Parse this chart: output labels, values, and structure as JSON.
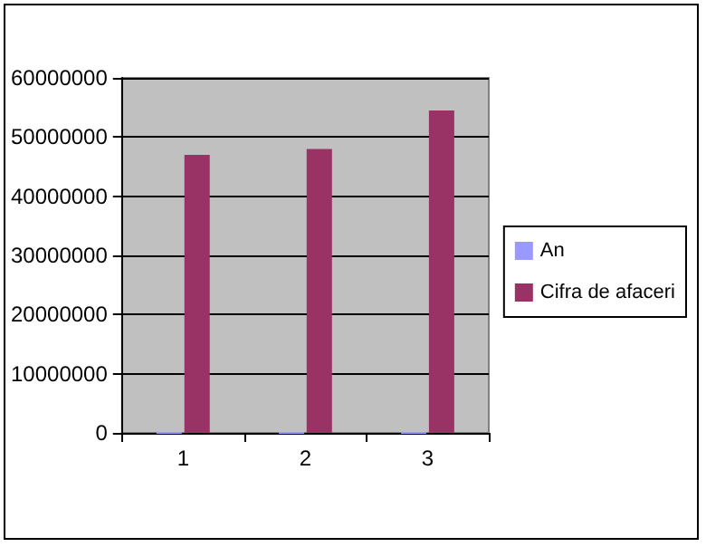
{
  "chart_data": {
    "type": "bar",
    "categories": [
      "1",
      "2",
      "3"
    ],
    "series": [
      {
        "name": "An",
        "color": "#9999ff",
        "values": [
          0,
          0,
          0
        ]
      },
      {
        "name": "Cifra de afaceri",
        "color": "#993366",
        "values": [
          47000000,
          48000000,
          54500000
        ]
      }
    ],
    "ylim": [
      0,
      60000000
    ],
    "yticks": [
      0,
      10000000,
      20000000,
      30000000,
      40000000,
      50000000,
      60000000
    ],
    "grid": "y",
    "legend": "right"
  }
}
